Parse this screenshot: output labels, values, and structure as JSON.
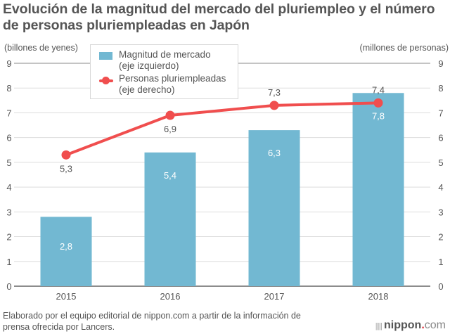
{
  "title": "Evolución de la magnitud del mercado del pluriempleo y el número de personas pluriempleadas en Japón",
  "footer": {
    "source_line1": "Elaborado por el equipo editorial de nippon.com a partir de la información de",
    "source_line2": "prensa ofrecida por Lancers.",
    "logo_name": "nippon",
    "logo_dot": ".",
    "logo_com": "com"
  },
  "colors": {
    "bar": "#72b8d2",
    "line": "#f04e4e",
    "grid": "#dddddd",
    "baseline": "#666666"
  },
  "chart_data": {
    "type": "bar+line",
    "title": "Evolución de la magnitud del mercado del pluriempleo y el número de personas pluriempleadas en Japón",
    "categories": [
      "2015",
      "2016",
      "2017",
      "2018"
    ],
    "series": [
      {
        "name": "Magnitud de mercado (eje izquierdo)",
        "legend_line1": "Magnitud de mercado",
        "legend_line2": "(eje izquierdo)",
        "type": "bar",
        "axis": "left",
        "values": [
          2.8,
          5.4,
          6.3,
          7.8
        ],
        "labels": [
          "2,8",
          "5,4",
          "6,3",
          "7,8"
        ]
      },
      {
        "name": "Personas pluriempleadas (eje derecho)",
        "legend_line1": "Personas pluriempleadas",
        "legend_line2": "(eje derecho)",
        "type": "line",
        "axis": "right",
        "values": [
          5.3,
          6.9,
          7.3,
          7.4
        ],
        "labels": [
          "5,3",
          "6,9",
          "7,3",
          "7,4"
        ]
      }
    ],
    "ylabel_left": "(billones de yenes)",
    "ylabel_right": "(millones de personas)",
    "ylim_left": [
      0,
      9
    ],
    "ylim_right": [
      0,
      9
    ],
    "yticks": [
      0,
      1,
      2,
      3,
      4,
      5,
      6,
      7,
      8,
      9
    ],
    "grid": true,
    "legend": "top-left"
  }
}
